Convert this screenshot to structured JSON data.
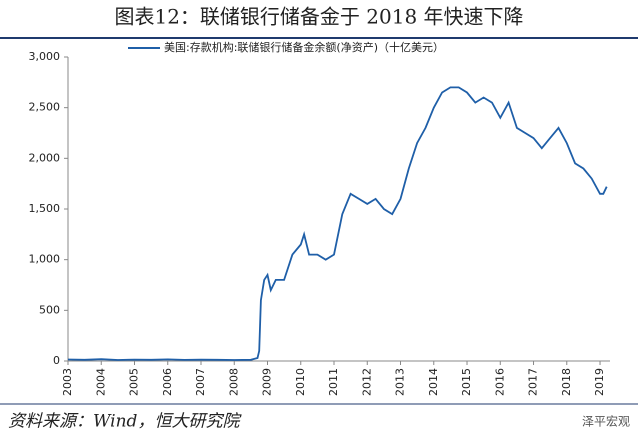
{
  "chart_data": {
    "type": "line",
    "title": "图表12：联储银行储备金于 2018 年快速下降",
    "x": [
      2003,
      2003.5,
      2004,
      2004.5,
      2005,
      2005.5,
      2006,
      2006.5,
      2007,
      2007.5,
      2008,
      2008.5,
      2008.7,
      2008.75,
      2008.8,
      2008.9,
      2009,
      2009.1,
      2009.25,
      2009.5,
      2009.75,
      2010,
      2010.1,
      2010.25,
      2010.5,
      2010.75,
      2011,
      2011.25,
      2011.5,
      2011.75,
      2012,
      2012.25,
      2012.5,
      2012.75,
      2013,
      2013.25,
      2013.5,
      2013.75,
      2014,
      2014.25,
      2014.5,
      2014.75,
      2015,
      2015.25,
      2015.5,
      2015.75,
      2016,
      2016.25,
      2016.5,
      2016.75,
      2017,
      2017.25,
      2017.5,
      2017.75,
      2018,
      2018.25,
      2018.5,
      2018.75,
      2019,
      2019.1,
      2019.2
    ],
    "series": [
      {
        "name": "美国:存款机构:联储银行储备金余额(净资产)（十亿美元）",
        "color": "#1f5fa8",
        "values": [
          15,
          12,
          18,
          10,
          14,
          12,
          16,
          11,
          13,
          12,
          10,
          12,
          30,
          100,
          600,
          800,
          850,
          700,
          800,
          800,
          1050,
          1150,
          1250,
          1050,
          1050,
          1000,
          1050,
          1450,
          1650,
          1600,
          1550,
          1600,
          1500,
          1450,
          1600,
          1900,
          2150,
          2300,
          2500,
          2650,
          2700,
          2700,
          2650,
          2550,
          2600,
          2550,
          2400,
          2550,
          2300,
          2250,
          2200,
          2100,
          2200,
          2300,
          2150,
          1950,
          1900,
          1800,
          1650,
          1650,
          1720
        ]
      }
    ],
    "xlim": [
      2003,
      2019.3
    ],
    "xticks": [
      2003,
      2004,
      2005,
      2006,
      2007,
      2008,
      2009,
      2010,
      2011,
      2012,
      2013,
      2014,
      2015,
      2016,
      2017,
      2018,
      2019
    ],
    "ylim": [
      0,
      3000
    ],
    "yticks": [
      0,
      500,
      {
        "value": 1000,
        "label": "1,000"
      },
      {
        "value": 1500,
        "label": "1,500"
      },
      {
        "value": 2000,
        "label": "2,000"
      },
      {
        "value": 2500,
        "label": "2,500"
      },
      {
        "value": 3000,
        "label": "3,000"
      }
    ],
    "legend": "top"
  },
  "source": "资料来源：Wind，恒大研究院",
  "watermark": "泽平宏观"
}
